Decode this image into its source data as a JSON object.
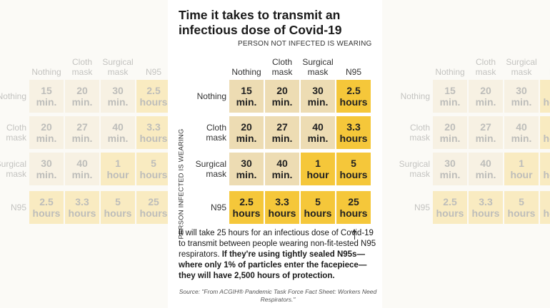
{
  "title": "Time it takes to transmit an infectious dose of Covid-19",
  "column_group_label": "PERSON NOT INFECTED IS WEARING",
  "row_group_label": "PERSON INFECTED IS WEARING",
  "note": {
    "regular": "It will take 25 hours for an infectious dose of Covid-19 to transmit between people wearing non-fit-tested N95 respirators.",
    "bold": "If they're using tightly sealed N95s—where only 1% of particles enter the facepiece—they will have 2,500 hours of protection."
  },
  "source": "Source: \"From ACGIH® Pandemic Task Force Fact Sheet: Workers Need Respirators.\"",
  "colors": {
    "beige": "#eddcb3",
    "yellow": "#f5c73a"
  },
  "chart_data": {
    "type": "table",
    "title": "Time it takes to transmit an infectious dose of Covid-19",
    "columns": [
      {
        "line1": "Nothing",
        "line2": ""
      },
      {
        "line1": "Cloth",
        "line2": "mask"
      },
      {
        "line1": "Surgical",
        "line2": "mask"
      },
      {
        "line1": "N95",
        "line2": ""
      }
    ],
    "rows": [
      {
        "line1": "Nothing",
        "line2": ""
      },
      {
        "line1": "Cloth",
        "line2": "mask"
      },
      {
        "line1": "Surgical",
        "line2": "mask"
      },
      {
        "line1": "N95",
        "line2": ""
      }
    ],
    "cells": [
      [
        {
          "value": "15",
          "unit": "min.",
          "hours": 0.25,
          "highlight": false
        },
        {
          "value": "20",
          "unit": "min.",
          "hours": 0.33,
          "highlight": false
        },
        {
          "value": "30",
          "unit": "min.",
          "hours": 0.5,
          "highlight": false
        },
        {
          "value": "2.5",
          "unit": "hours",
          "hours": 2.5,
          "highlight": true
        }
      ],
      [
        {
          "value": "20",
          "unit": "min.",
          "hours": 0.33,
          "highlight": false
        },
        {
          "value": "27",
          "unit": "min.",
          "hours": 0.45,
          "highlight": false
        },
        {
          "value": "40",
          "unit": "min.",
          "hours": 0.67,
          "highlight": false
        },
        {
          "value": "3.3",
          "unit": "hours",
          "hours": 3.3,
          "highlight": true
        }
      ],
      [
        {
          "value": "30",
          "unit": "min.",
          "hours": 0.5,
          "highlight": false
        },
        {
          "value": "40",
          "unit": "min.",
          "hours": 0.67,
          "highlight": false
        },
        {
          "value": "1",
          "unit": "hour",
          "hours": 1,
          "highlight": true
        },
        {
          "value": "5",
          "unit": "hours",
          "hours": 5,
          "highlight": true
        }
      ],
      [
        {
          "value": "2.5",
          "unit": "hours",
          "hours": 2.5,
          "highlight": true
        },
        {
          "value": "3.3",
          "unit": "hours",
          "hours": 3.3,
          "highlight": true
        },
        {
          "value": "5",
          "unit": "hours",
          "hours": 5,
          "highlight": true
        },
        {
          "value": "25",
          "unit": "hours",
          "hours": 25,
          "highlight": true
        }
      ]
    ]
  }
}
